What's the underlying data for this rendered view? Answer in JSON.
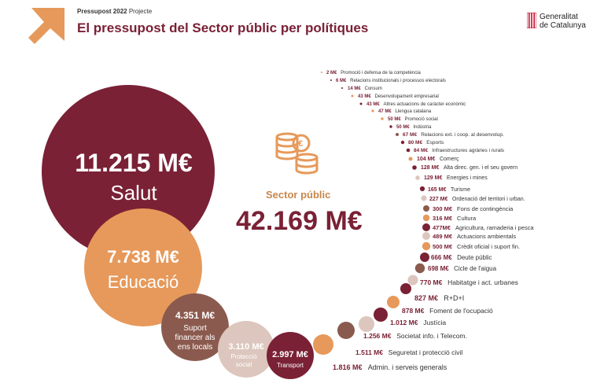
{
  "header": {
    "subtitle_bold": "Pressupost 2022",
    "subtitle_rest": " Projecte",
    "title": "El pressupost del Sector públic per polítiques",
    "brand_line1": "Generalitat",
    "brand_line2": "de Catalunya"
  },
  "center": {
    "label": "Sector públic",
    "total": "42.169 M€"
  },
  "colors": {
    "maroon": "#7a2135",
    "orange": "#e6995a",
    "brown": "#8b5a4e",
    "beige": "#dcc6bd"
  },
  "big_items": [
    {
      "amount": "11.215 M€",
      "label": "Salut"
    },
    {
      "amount": "7.738 M€",
      "label": "Educació"
    },
    {
      "amount": "4.351 M€",
      "label1": "Suport",
      "label2": "financer als",
      "label3": "ens locals"
    },
    {
      "amount": "3.110 M€",
      "label1": "Protecció",
      "label2": "social"
    },
    {
      "amount": "2.997 M€",
      "label": "Transport"
    }
  ],
  "list_items": [
    {
      "amount": "2 M€",
      "label": "Promoció i defensa de la competència"
    },
    {
      "amount": "6 M€",
      "label": "Relacions institucionals i processos electorals"
    },
    {
      "amount": "14 M€",
      "label": "Consum"
    },
    {
      "amount": "43 M€",
      "label": "Desenvolupament empresarial"
    },
    {
      "amount": "43 M€",
      "label": "Altres actuacions de caràcter econòmic"
    },
    {
      "amount": "47 M€",
      "label": "Llengua catalana"
    },
    {
      "amount": "50 M€",
      "label": "Promoció social"
    },
    {
      "amount": "50 M€",
      "label": "Indústria"
    },
    {
      "amount": "67 M€",
      "label": "Relacions ext. i coop. al desenvolup."
    },
    {
      "amount": "80 M€",
      "label": "Esports"
    },
    {
      "amount": "84 M€",
      "label": "Infraestructures agràries i rurals"
    },
    {
      "amount": "104 M€",
      "label": "Comerç"
    },
    {
      "amount": "128 M€",
      "label": "Alta direc. gen. i el seu govern"
    },
    {
      "amount": "129 M€",
      "label": "Energies i mines"
    },
    {
      "amount": "165 M€",
      "label": "Turisme"
    },
    {
      "amount": "227 M€",
      "label": "Ordenació del territori i urban."
    },
    {
      "amount": "300 M€",
      "label": "Fons de contingència"
    },
    {
      "amount": "316 M€",
      "label": "Cultura"
    },
    {
      "amount": "477M€",
      "label": "Agricultura, ramaderia i pesca"
    },
    {
      "amount": "489 M€",
      "label": "Actuacions ambientals"
    },
    {
      "amount": "500 M€",
      "label": "Crèdit oficial i suport fin."
    },
    {
      "amount": "666 M€",
      "label": "Deute públic"
    },
    {
      "amount": "698 M€",
      "label": "Cicle de l'aigua"
    },
    {
      "amount": "770 M€",
      "label": "Habitatge i act. urbanes"
    },
    {
      "amount": "827 M€",
      "label": "R+D+I"
    },
    {
      "amount": "878 M€",
      "label": "Foment de l'ocupació"
    },
    {
      "amount": "1.012 M€",
      "label": "Justícia"
    },
    {
      "amount": "1.256 M€",
      "label": "Societat info. i Telecom."
    },
    {
      "amount": "1.511 M€",
      "label": "Seguretat i protecció civil"
    },
    {
      "amount": "1.816 M€",
      "label": "Admin. i serveis generals"
    }
  ]
}
